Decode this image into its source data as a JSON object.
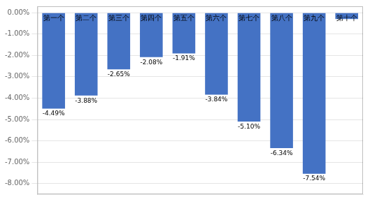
{
  "chart_data": {
    "type": "bar",
    "categories": [
      "第一个",
      "第二个",
      "第三个",
      "第四个",
      "第五个",
      "第六个",
      "第七个",
      "第八个",
      "第九个",
      "第十个"
    ],
    "values": [
      -4.49,
      -3.88,
      -2.65,
      -2.08,
      -1.91,
      -3.84,
      -5.1,
      -6.34,
      -7.54,
      -0.3
    ],
    "value_labels": [
      "-4.49%",
      "-3.88%",
      "-2.65%",
      "-2.08%",
      "-1.91%",
      "-3.84%",
      "-5.10%",
      "-6.34%",
      "-7.54%",
      null
    ],
    "data_labels": true,
    "color": "#4472C4",
    "ylim": [
      -8.5,
      0.3
    ],
    "yticks": [
      {
        "value": 0,
        "label": "0.00%"
      },
      {
        "value": -1,
        "label": "-1.00%"
      },
      {
        "value": -2,
        "label": "-2.00%"
      },
      {
        "value": -3,
        "label": "-3.00%"
      },
      {
        "value": -4,
        "label": "-4.00%"
      },
      {
        "value": -5,
        "label": "-5.00%"
      },
      {
        "value": -6,
        "label": "-6.00%"
      },
      {
        "value": -7,
        "label": "-7.00%"
      },
      {
        "value": -8,
        "label": "-8.00%"
      }
    ],
    "grid": true,
    "tick_labels": "y"
  }
}
